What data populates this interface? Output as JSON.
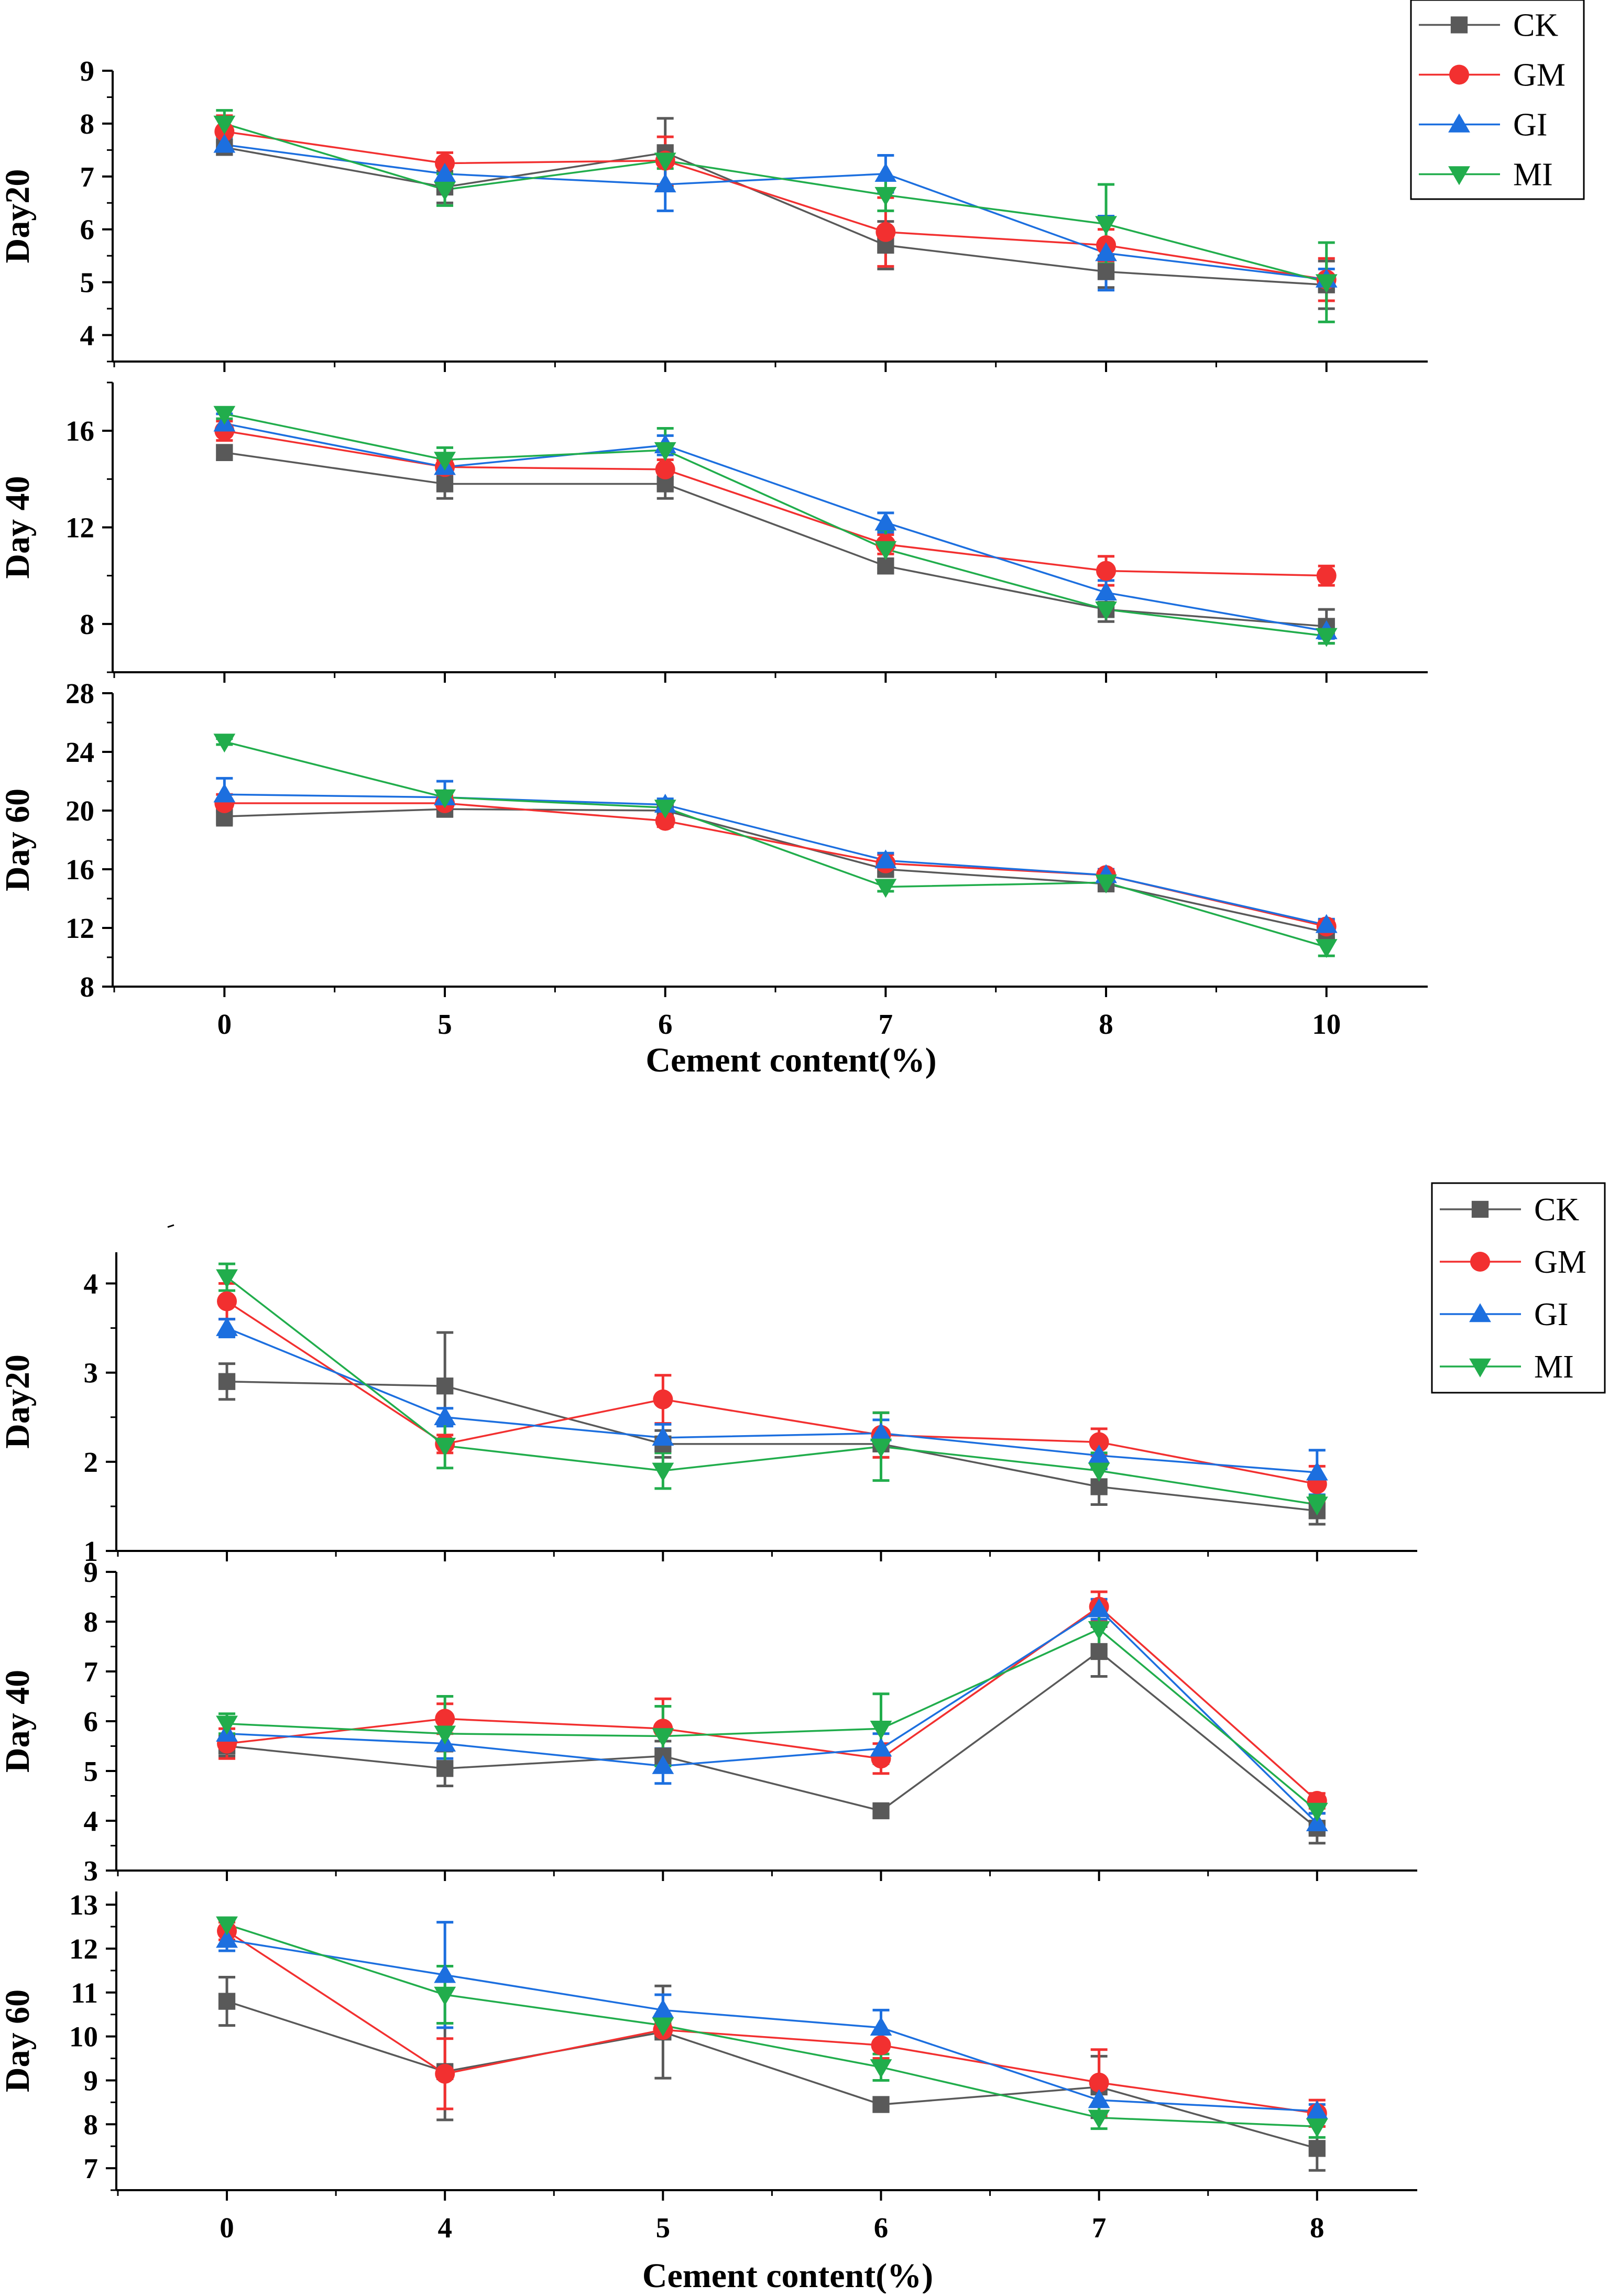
{
  "colors": {
    "CK": "#595959",
    "GM": "#f23030",
    "GI": "#1c6fdf",
    "MI": "#21ad4c"
  },
  "figures": [
    {
      "xlabel": "Cement content(%)",
      "categories": [
        "0",
        "5",
        "6",
        "7",
        "8",
        "10"
      ],
      "legend": [
        "CK",
        "GM",
        "GI",
        "MI"
      ]
    },
    {
      "xlabel": "Cement content(%)",
      "categories": [
        "0",
        "4",
        "5",
        "6",
        "7",
        "8"
      ],
      "legend": [
        "CK",
        "GM",
        "GI",
        "MI"
      ]
    }
  ],
  "chart_data": [
    {
      "type": "line",
      "figure": 0,
      "title": "",
      "ylabel": "Day20",
      "categories": [
        "0",
        "5",
        "6",
        "7",
        "8",
        "10"
      ],
      "ylim": [
        3.5,
        9
      ],
      "yticks": [
        4,
        5,
        6,
        7,
        8,
        9
      ],
      "series": [
        {
          "name": "CK",
          "marker": "square",
          "values": [
            7.55,
            6.8,
            7.45,
            5.7,
            5.2,
            4.95
          ],
          "errors": [
            0.1,
            0.3,
            0.65,
            0.45,
            0.3,
            0.45
          ]
        },
        {
          "name": "GM",
          "marker": "circle",
          "values": [
            7.85,
            7.25,
            7.3,
            5.95,
            5.7,
            5.05
          ],
          "errors": [
            0.3,
            0.2,
            0.45,
            0.65,
            0.3,
            0.4
          ]
        },
        {
          "name": "GI",
          "marker": "triangle-up",
          "values": [
            7.6,
            7.05,
            6.85,
            7.05,
            5.55,
            5.05
          ],
          "errors": [
            0.1,
            0.25,
            0.5,
            0.35,
            0.7,
            0.2
          ]
        },
        {
          "name": "MI",
          "marker": "triangle-down",
          "values": [
            8.0,
            6.75,
            7.3,
            6.65,
            6.1,
            5.0
          ],
          "errors": [
            0.25,
            0.3,
            0.15,
            0.3,
            0.75,
            0.75
          ]
        }
      ]
    },
    {
      "type": "line",
      "figure": 0,
      "title": "",
      "ylabel": "Day 40",
      "categories": [
        "0",
        "5",
        "6",
        "7",
        "8",
        "10"
      ],
      "ylim": [
        6.0,
        18.0
      ],
      "yticks": [
        8,
        12,
        16
      ],
      "series": [
        {
          "name": "CK",
          "marker": "square",
          "values": [
            15.1,
            13.8,
            13.8,
            10.4,
            8.6,
            7.9
          ],
          "errors": [
            0.3,
            0.6,
            0.6,
            0.3,
            0.5,
            0.7
          ]
        },
        {
          "name": "GM",
          "marker": "circle",
          "values": [
            16.0,
            14.5,
            14.4,
            11.3,
            10.2,
            10.0
          ],
          "errors": [
            0.4,
            0.3,
            0.4,
            0.4,
            0.6,
            0.4
          ]
        },
        {
          "name": "GI",
          "marker": "triangle-up",
          "values": [
            16.3,
            14.5,
            15.4,
            12.2,
            9.3,
            7.7
          ],
          "errors": [
            0.4,
            0.5,
            0.4,
            0.4,
            0.5,
            0.3
          ]
        },
        {
          "name": "MI",
          "marker": "triangle-down",
          "values": [
            16.7,
            14.8,
            15.2,
            11.1,
            8.6,
            7.5
          ],
          "errors": [
            0.2,
            0.5,
            0.9,
            0.8,
            0.3,
            0.3
          ]
        }
      ]
    },
    {
      "type": "line",
      "figure": 0,
      "title": "",
      "ylabel": "Day 60",
      "categories": [
        "0",
        "5",
        "6",
        "7",
        "8",
        "10"
      ],
      "ylim": [
        8,
        28
      ],
      "yticks": [
        8,
        12,
        16,
        20,
        24,
        28
      ],
      "series": [
        {
          "name": "CK",
          "marker": "square",
          "values": [
            19.6,
            20.1,
            20.0,
            16.0,
            15.0,
            11.7
          ],
          "errors": [
            0.6,
            0.5,
            0.5,
            0.5,
            0.4,
            0.5
          ]
        },
        {
          "name": "GM",
          "marker": "circle",
          "values": [
            20.5,
            20.5,
            19.3,
            16.4,
            15.6,
            12.1
          ],
          "errors": [
            0.6,
            0.5,
            0.4,
            0.6,
            0.4,
            0.4
          ]
        },
        {
          "name": "GI",
          "marker": "triangle-up",
          "values": [
            21.1,
            20.9,
            20.4,
            16.6,
            15.6,
            12.2
          ],
          "errors": [
            1.1,
            1.1,
            0.4,
            0.5,
            0.4,
            0.4
          ]
        },
        {
          "name": "MI",
          "marker": "triangle-down",
          "values": [
            24.7,
            20.9,
            20.2,
            14.8,
            15.1,
            10.7
          ],
          "errors": [
            0.2,
            0.4,
            0.4,
            0.3,
            0.5,
            0.6
          ]
        }
      ]
    },
    {
      "type": "line",
      "figure": 1,
      "title": "",
      "ylabel": "Day20",
      "categories": [
        "0",
        "4",
        "5",
        "6",
        "7",
        "8"
      ],
      "ylim": [
        1,
        4.35
      ],
      "yticks": [
        1,
        2,
        3,
        4
      ],
      "series": [
        {
          "name": "CK",
          "marker": "square",
          "values": [
            2.9,
            2.85,
            2.2,
            2.2,
            1.72,
            1.45
          ],
          "errors": [
            0.2,
            0.6,
            0.15,
            0.15,
            0.2,
            0.15
          ]
        },
        {
          "name": "GM",
          "marker": "circle",
          "values": [
            3.8,
            2.2,
            2.7,
            2.3,
            2.22,
            1.75
          ],
          "errors": [
            0.2,
            0.1,
            0.27,
            0.25,
            0.15,
            0.2
          ]
        },
        {
          "name": "GI",
          "marker": "triangle-up",
          "values": [
            3.5,
            2.5,
            2.27,
            2.32,
            2.07,
            1.88
          ],
          "errors": [
            0.1,
            0.1,
            0.15,
            0.15,
            0.15,
            0.25
          ]
        },
        {
          "name": "MI",
          "marker": "triangle-down",
          "values": [
            4.07,
            2.18,
            1.9,
            2.17,
            1.9,
            1.52
          ],
          "errors": [
            0.15,
            0.25,
            0.2,
            0.38,
            0.2,
            0.1
          ]
        }
      ]
    },
    {
      "type": "line",
      "figure": 1,
      "title": "",
      "ylabel": "Day 40",
      "categories": [
        "0",
        "4",
        "5",
        "6",
        "7",
        "8"
      ],
      "ylim": [
        3,
        9
      ],
      "yticks": [
        3,
        4,
        5,
        6,
        7,
        8,
        9
      ],
      "series": [
        {
          "name": "CK",
          "marker": "square",
          "values": [
            5.5,
            5.05,
            5.3,
            4.2,
            7.4,
            3.85
          ],
          "errors": [
            0.2,
            0.35,
            0.3,
            0.1,
            0.5,
            0.3
          ]
        },
        {
          "name": "GM",
          "marker": "circle",
          "values": [
            5.55,
            6.05,
            5.85,
            5.25,
            8.3,
            4.4
          ],
          "errors": [
            0.3,
            0.3,
            0.6,
            0.3,
            0.3,
            0.15
          ]
        },
        {
          "name": "GI",
          "marker": "triangle-up",
          "values": [
            5.75,
            5.55,
            5.1,
            5.45,
            8.25,
            3.95
          ],
          "errors": [
            0.3,
            0.3,
            0.35,
            0.3,
            0.2,
            0.2
          ]
        },
        {
          "name": "MI",
          "marker": "triangle-down",
          "values": [
            5.95,
            5.75,
            5.7,
            5.85,
            7.85,
            4.2
          ],
          "errors": [
            0.2,
            0.75,
            0.6,
            0.7,
            0.4,
            0.25
          ]
        }
      ]
    },
    {
      "type": "line",
      "figure": 1,
      "title": "",
      "ylabel": "Day 60",
      "categories": [
        "0",
        "4",
        "5",
        "6",
        "7",
        "8"
      ],
      "ylim": [
        6.5,
        13.3
      ],
      "yticks": [
        7,
        8,
        9,
        10,
        11,
        12,
        13
      ],
      "series": [
        {
          "name": "CK",
          "marker": "square",
          "values": [
            10.8,
            9.2,
            10.1,
            8.45,
            8.85,
            7.45
          ],
          "errors": [
            0.55,
            1.1,
            1.05,
            0.15,
            0.7,
            0.5
          ]
        },
        {
          "name": "GM",
          "marker": "circle",
          "values": [
            12.4,
            9.15,
            10.15,
            9.8,
            8.95,
            8.25
          ],
          "errors": [
            0.2,
            0.8,
            0.15,
            0.3,
            0.75,
            0.3
          ]
        },
        {
          "name": "GI",
          "marker": "triangle-up",
          "values": [
            12.2,
            11.4,
            10.6,
            10.2,
            8.55,
            8.3
          ],
          "errors": [
            0.25,
            1.2,
            0.35,
            0.4,
            0.3,
            0.15
          ]
        },
        {
          "name": "MI",
          "marker": "triangle-down",
          "values": [
            12.55,
            10.95,
            10.25,
            9.3,
            8.15,
            7.95
          ],
          "errors": [
            0.15,
            0.65,
            0.25,
            0.3,
            0.25,
            0.25
          ]
        }
      ]
    }
  ]
}
